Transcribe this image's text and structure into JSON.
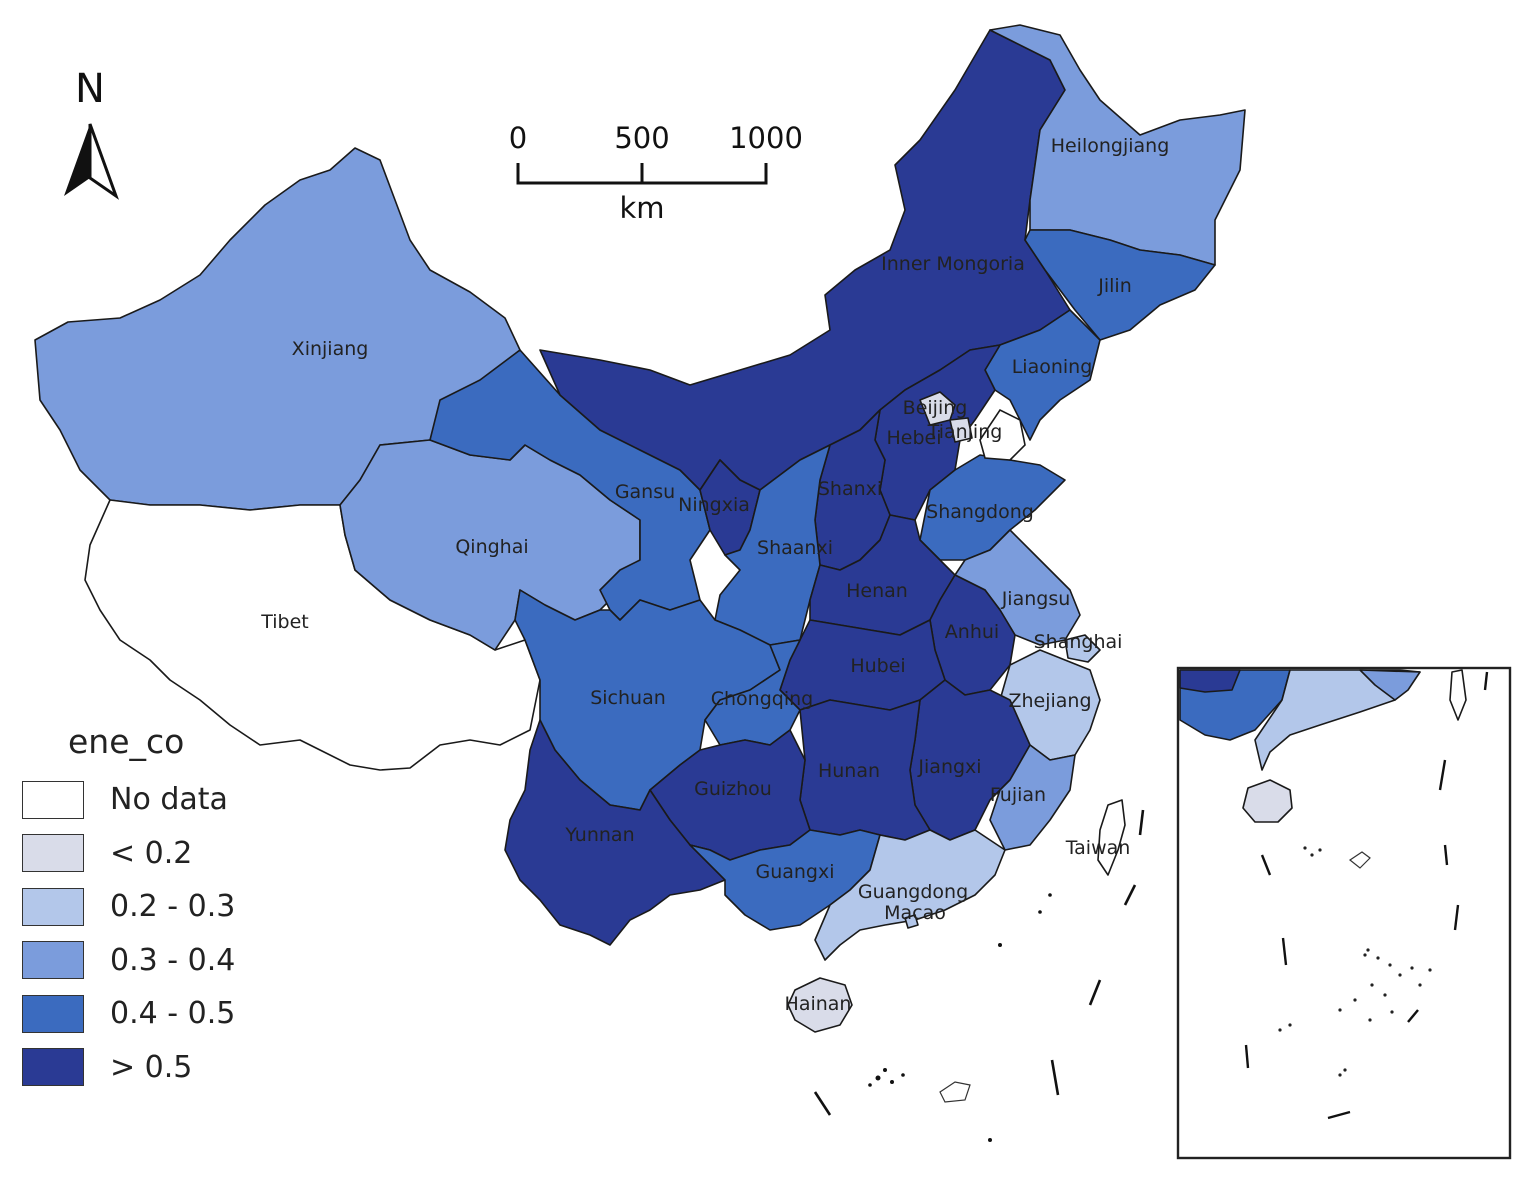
{
  "north_arrow": {
    "label": "N"
  },
  "scale_bar": {
    "ticks": [
      "0",
      "500",
      "1000"
    ],
    "unit": "km"
  },
  "legend": {
    "title": "ene_co",
    "items": [
      {
        "label": "No data",
        "color": "#ffffff"
      },
      {
        "label": "< 0.2",
        "color": "#d9dce9"
      },
      {
        "label": "0.2 - 0.3",
        "color": "#b3c7ea"
      },
      {
        "label": "0.3 - 0.4",
        "color": "#7b9cdc"
      },
      {
        "label": "0.4 - 0.5",
        "color": "#3b6bbf"
      },
      {
        "label": "> 0.5",
        "color": "#2a3a94"
      }
    ]
  },
  "provinces": {
    "xinjiang": {
      "label": "Xinjiang",
      "class": "0.3 - 0.4"
    },
    "tibet": {
      "label": "Tibet",
      "class": "No data"
    },
    "qinghai": {
      "label": "Qinghai",
      "class": "0.3 - 0.4"
    },
    "gansu": {
      "label": "Gansu",
      "class": "0.4 - 0.5"
    },
    "inner_mongolia": {
      "label": "Inner Mongoria",
      "class": "> 0.5"
    },
    "heilongjiang": {
      "label": "Heilongjiang",
      "class": "0.3 - 0.4"
    },
    "jilin": {
      "label": "Jilin",
      "class": "0.4 - 0.5"
    },
    "liaoning": {
      "label": "Liaoning",
      "class": "0.4 - 0.5"
    },
    "beijing": {
      "label": "Beijing",
      "class": "< 0.2"
    },
    "tianjin": {
      "label": "Tianjing",
      "class": "< 0.2"
    },
    "hebei": {
      "label": "Hebei",
      "class": "> 0.5"
    },
    "ningxia": {
      "label": "Ningxia",
      "class": "> 0.5"
    },
    "shanxi": {
      "label": "Shanxi",
      "class": "> 0.5"
    },
    "shaanxi": {
      "label": "Shaanxi",
      "class": "0.4 - 0.5"
    },
    "shandong": {
      "label": "Shangdong",
      "class": "0.4 - 0.5"
    },
    "henan": {
      "label": "Henan",
      "class": "> 0.5"
    },
    "jiangsu": {
      "label": "Jiangsu",
      "class": "0.3 - 0.4"
    },
    "shanghai": {
      "label": "Shanghai",
      "class": "0.2 - 0.3"
    },
    "anhui": {
      "label": "Anhui",
      "class": "> 0.5"
    },
    "hubei": {
      "label": "Hubei",
      "class": "> 0.5"
    },
    "sichuan": {
      "label": "Sichuan",
      "class": "0.4 - 0.5"
    },
    "chongqing": {
      "label": "Chongqing",
      "class": "0.4 - 0.5"
    },
    "zhejiang": {
      "label": "Zhejiang",
      "class": "0.2 - 0.3"
    },
    "jiangxi": {
      "label": "Jiangxi",
      "class": "> 0.5"
    },
    "hunan": {
      "label": "Hunan",
      "class": "> 0.5"
    },
    "guizhou": {
      "label": "Guizhou",
      "class": "> 0.5"
    },
    "fujian": {
      "label": "Fujian",
      "class": "0.3 - 0.4"
    },
    "yunnan": {
      "label": "Yunnan",
      "class": "> 0.5"
    },
    "guangxi": {
      "label": "Guangxi",
      "class": "0.4 - 0.5"
    },
    "guangdong": {
      "label": "Guangdong",
      "class": "0.2 - 0.3"
    },
    "macao": {
      "label": "Macao",
      "class": "0.2 - 0.3"
    },
    "taiwan": {
      "label": "Taiwan",
      "class": "No data"
    },
    "hainan": {
      "label": "Hainan",
      "class": "< 0.2"
    }
  }
}
